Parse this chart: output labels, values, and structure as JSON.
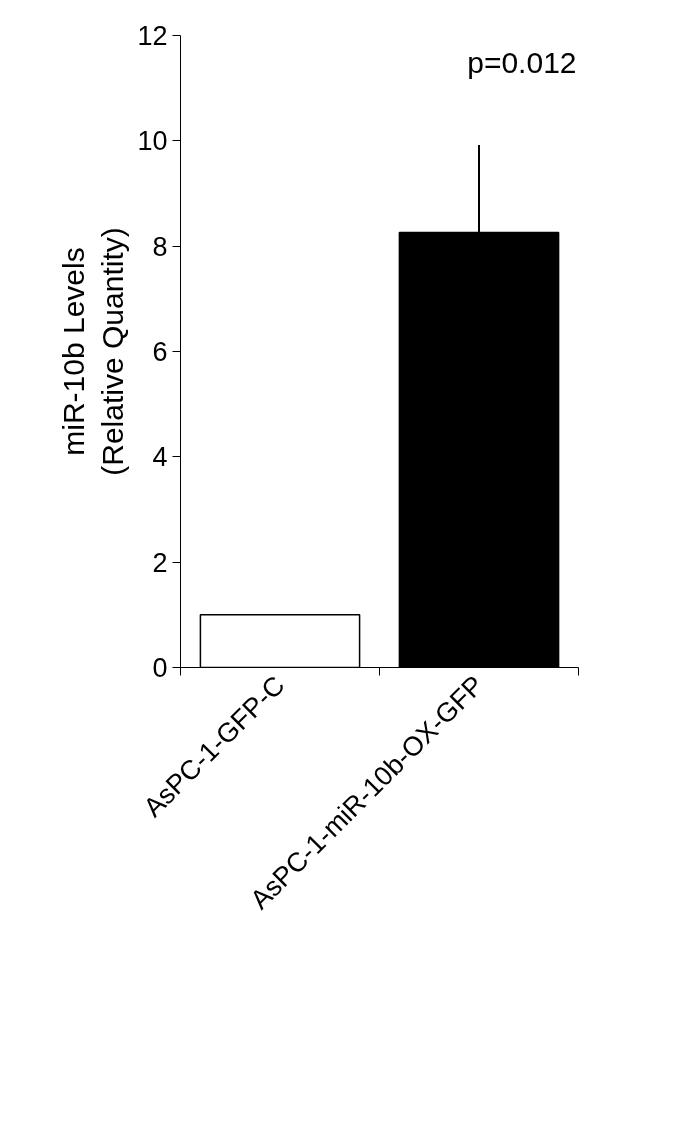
{
  "chart_data": {
    "type": "bar",
    "categories": [
      "AsPC-1-GFP-C",
      "AsPC-1-miR-10b-OX-GFP"
    ],
    "values": [
      1.0,
      8.26
    ],
    "colors": [
      "#ffffff",
      "#000000"
    ],
    "errors": [
      null,
      [
        8.26,
        9.92
      ]
    ],
    "ylabel": "miR-10b Levels\n(Relative Quantity)",
    "ylim": [
      0,
      12
    ],
    "yticks": [
      0,
      2,
      4,
      6,
      8,
      10,
      12
    ],
    "annotations": [
      "p=0.012"
    ],
    "grid": false
  }
}
